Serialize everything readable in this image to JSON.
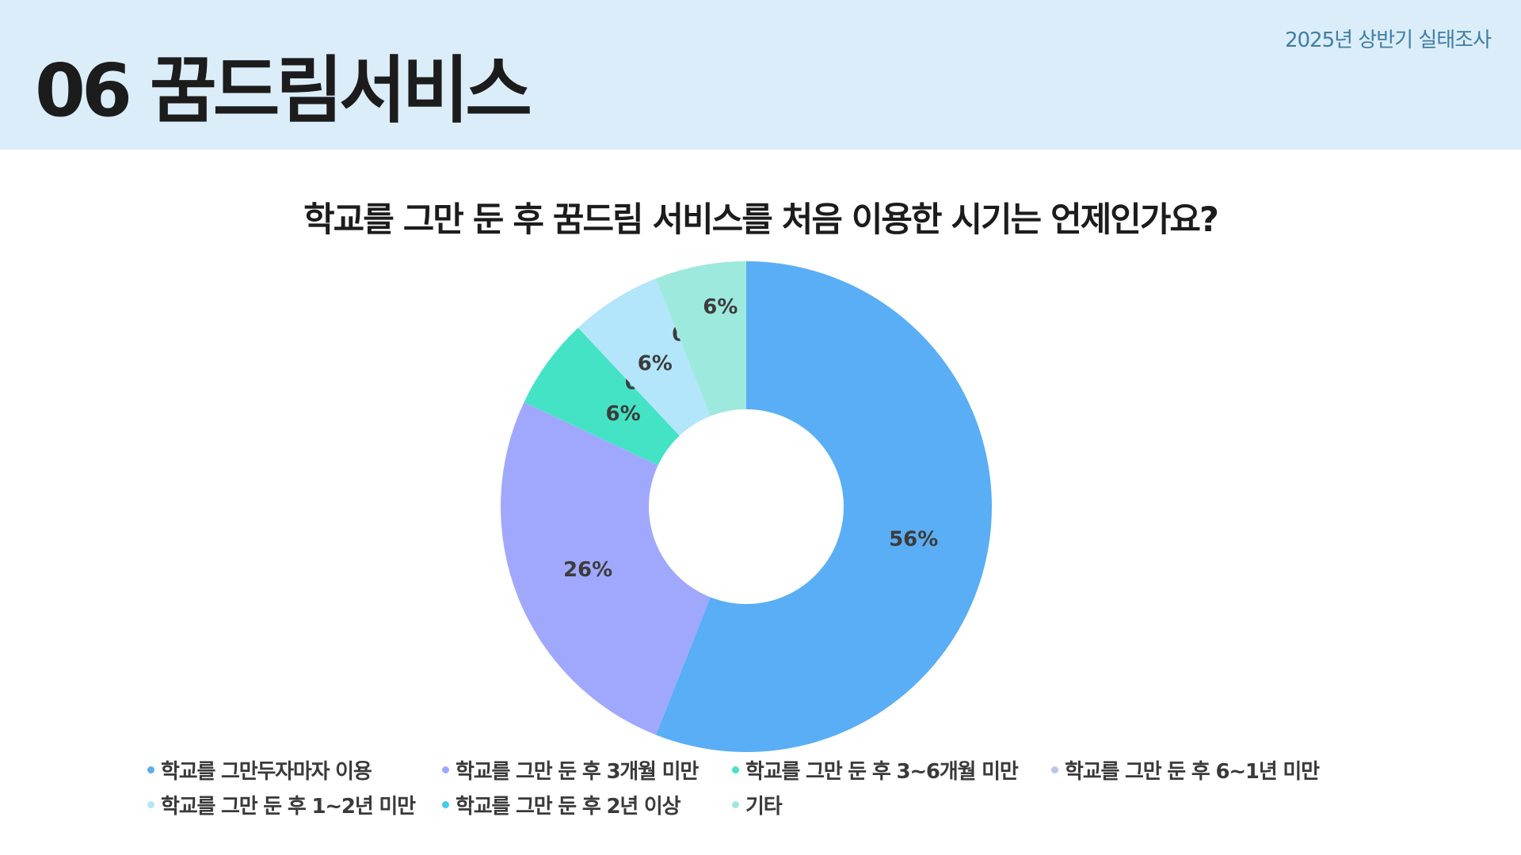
{
  "header": {
    "section_title": "06 꿈드림서비스",
    "survey_label": "2025년 상반기 실태조사"
  },
  "chart_data": {
    "type": "pie",
    "style": "donut",
    "title": "학교를 그만 둔 후 꿈드림 서비스를 처음 이용한 시기는 언제인가요?",
    "legend_position": "bottom",
    "slices": [
      {
        "label": "학교를 그만두자마자 이용",
        "value": 56,
        "display": "56%",
        "color": "#5aaef5"
      },
      {
        "label": "학교를 그만 둔 후 3개월 미만",
        "value": 26,
        "display": "26%",
        "color": "#a0a8fe"
      },
      {
        "label": "학교를 그만 둔 후 3~6개월 미만",
        "value": 6,
        "display": "6%",
        "color": "#44e3c5"
      },
      {
        "label": "학교를 그만 둔 후 6~1년 미만",
        "value": 0,
        "display": "0%",
        "color": "#bec6e8"
      },
      {
        "label": "학교를 그만 둔 후 1~2년 미만",
        "value": 6,
        "display": "6%",
        "color": "#b3e5fb"
      },
      {
        "label": "학교를 그만 둔 후 2년 이상",
        "value": 0,
        "display": "0%",
        "color": "#44ccea"
      },
      {
        "label": "기타",
        "value": 6,
        "display": "6%",
        "color": "#9ee9de"
      }
    ]
  }
}
